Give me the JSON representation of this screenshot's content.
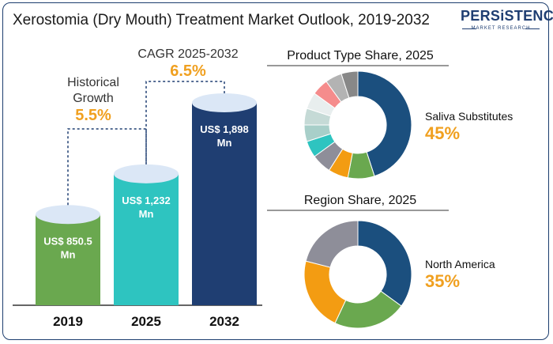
{
  "title": "Xerostomia (Dry Mouth) Treatment Market Outlook, 2019-2032",
  "logo": {
    "main": "PERSiSTENCE",
    "sub": "MARKET RESEARCH"
  },
  "chart_data": [
    {
      "type": "bar",
      "categories": [
        "2019",
        "2025",
        "2032"
      ],
      "values": [
        850.5,
        1232,
        1898
      ],
      "value_labels": [
        [
          "US$ 850.5",
          "Mn"
        ],
        [
          "US$ 1,232",
          "Mn"
        ],
        [
          "US$ 1,898",
          "Mn"
        ]
      ],
      "colors": [
        "#6aa84f",
        "#2ec4c0",
        "#1f3e72"
      ],
      "annotations": [
        {
          "label_lines": [
            "Historical",
            "Growth"
          ],
          "value": "5.5%"
        },
        {
          "label_lines": [
            "CAGR 2025-2032"
          ],
          "value": "6.5%"
        }
      ],
      "accent_color": "#f0a020"
    },
    {
      "type": "pie",
      "title": "Product Type Share, 2025",
      "highlight_label": "Saliva Substitutes",
      "highlight_value": "45%",
      "values": [
        45,
        8,
        6,
        6,
        5,
        5,
        5,
        5,
        5,
        5,
        5
      ],
      "colors": [
        "#1b4f7e",
        "#6aa84f",
        "#f39c12",
        "#8e8e99",
        "#2ec4c0",
        "#a8cfc9",
        "#c5dad6",
        "#e8eeee",
        "#f58c8c",
        "#b3b3b3",
        "#888888"
      ]
    },
    {
      "type": "pie",
      "title": "Region Share, 2025",
      "highlight_label": "North America",
      "highlight_value": "35%",
      "values": [
        35,
        22,
        22,
        21
      ],
      "colors": [
        "#1b4f7e",
        "#6aa84f",
        "#f39c12",
        "#8e8e99"
      ]
    }
  ]
}
